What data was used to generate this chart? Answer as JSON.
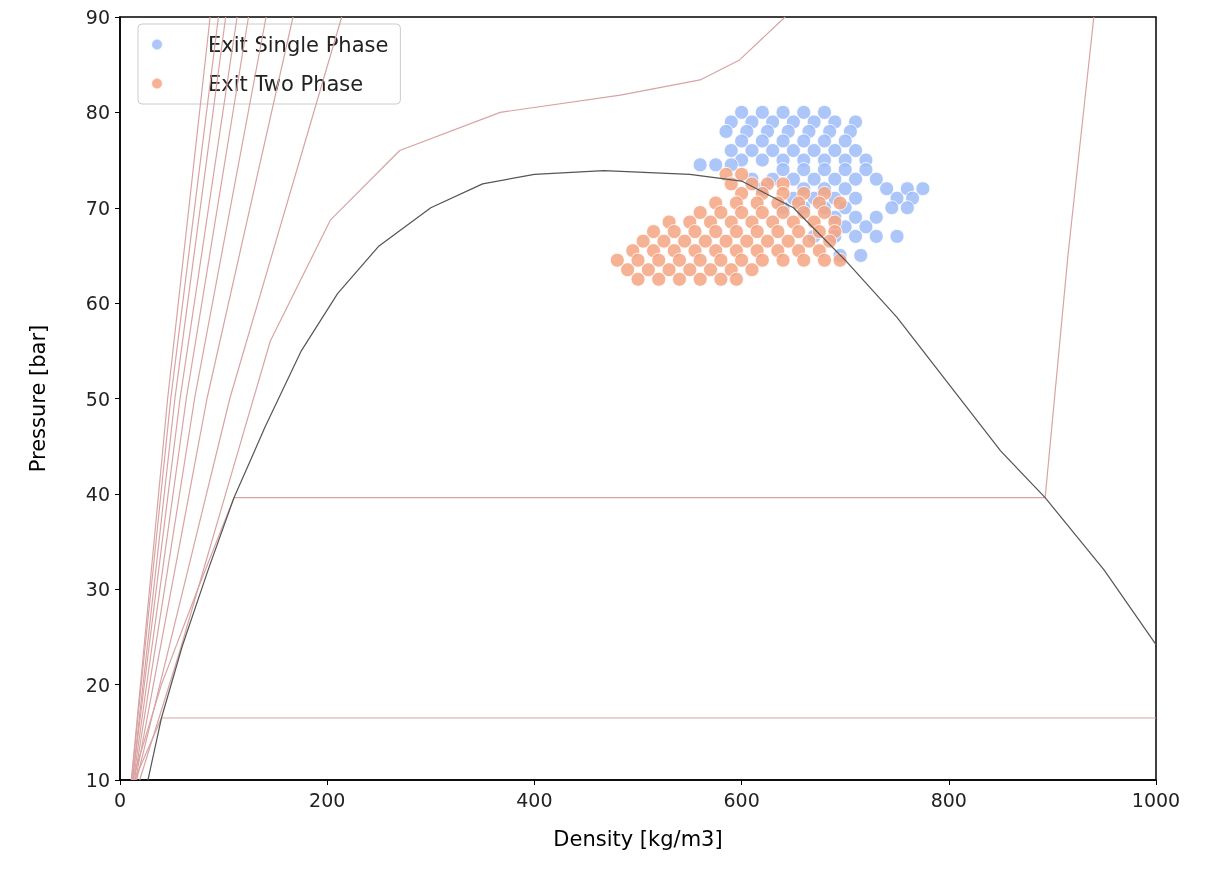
{
  "chart_data": {
    "type": "scatter",
    "xlabel": "Density [kg/m3]",
    "ylabel": "Pressure [bar]",
    "xlim": [
      0,
      1000
    ],
    "xticks": [
      0,
      200,
      400,
      600,
      800,
      1000
    ],
    "ylim": [
      10,
      90
    ],
    "yticks": [
      10,
      20,
      30,
      40,
      50,
      60,
      70,
      80,
      90
    ],
    "grid": false,
    "legend": "top left",
    "series": [
      {
        "type": "line",
        "color": "#d9a3a3",
        "x": [
          14,
          40,
          1000
        ],
        "values": [
          10,
          16.5,
          16.5
        ]
      },
      {
        "type": "line",
        "color": "#d9a3a3",
        "x": [
          12,
          40,
          75,
          110,
          893,
          915,
          940
        ],
        "values": [
          10,
          20,
          30,
          39.6,
          39.6,
          65,
          90
        ]
      },
      {
        "type": "line",
        "color": "#d9a3a3",
        "x": [
          19,
          58,
          106,
          145,
          203,
          270,
          367,
          483,
          560,
          598,
          642
        ],
        "values": [
          10,
          23.6,
          41.5,
          56,
          68.7,
          76,
          80,
          81.8,
          83.4,
          85.5,
          90
        ]
      },
      {
        "type": "line",
        "color": "#d9a3a3",
        "x": [
          11,
          46,
          87
        ],
        "values": [
          10,
          50,
          90
        ]
      },
      {
        "type": "line",
        "color": "#d9a3a3",
        "x": [
          11,
          49,
          95
        ],
        "values": [
          10,
          50,
          90
        ]
      },
      {
        "type": "line",
        "color": "#d9a3a3",
        "x": [
          12,
          53,
          102
        ],
        "values": [
          10,
          50,
          90
        ]
      },
      {
        "type": "line",
        "color": "#d9a3a3",
        "x": [
          12,
          58,
          113
        ],
        "values": [
          10,
          50,
          90
        ]
      },
      {
        "type": "line",
        "color": "#d9a3a3",
        "x": [
          13,
          64,
          124
        ],
        "values": [
          10,
          50,
          90
        ]
      },
      {
        "type": "line",
        "color": "#d9a3a3",
        "x": [
          14,
          72,
          141
        ],
        "values": [
          10,
          50,
          90
        ]
      },
      {
        "type": "line",
        "color": "#d9a3a3",
        "x": [
          15,
          84,
          167
        ],
        "values": [
          10,
          50,
          90
        ]
      },
      {
        "type": "line",
        "color": "#d9a3a3",
        "x": [
          16,
          106,
          214
        ],
        "values": [
          10,
          50,
          90
        ]
      },
      {
        "name": "Exit Single Phase",
        "color": "#9dbcf8",
        "marker": "circle",
        "x": [
          600,
          620,
          640,
          660,
          680,
          590,
          610,
          630,
          650,
          670,
          690,
          710,
          585,
          605,
          625,
          645,
          665,
          685,
          705,
          600,
          620,
          640,
          660,
          680,
          700,
          590,
          610,
          630,
          650,
          670,
          690,
          710,
          600,
          620,
          640,
          660,
          680,
          700,
          720,
          560,
          575,
          590,
          640,
          660,
          680,
          700,
          720,
          610,
          630,
          650,
          670,
          690,
          710,
          730,
          620,
          640,
          660,
          680,
          700,
          740,
          760,
          775,
          650,
          670,
          690,
          710,
          750,
          765,
          640,
          660,
          680,
          700,
          745,
          760,
          690,
          710,
          730,
          700,
          720,
          670,
          690,
          710,
          730,
          750,
          695,
          715
        ],
        "values": [
          80,
          80,
          80,
          80,
          80,
          79,
          79,
          79,
          79,
          79,
          79,
          79,
          78,
          78,
          78,
          78,
          78,
          78,
          78,
          77,
          77,
          77,
          77,
          77,
          77,
          76,
          76,
          76,
          76,
          76,
          76,
          76,
          75,
          75,
          75,
          75,
          75,
          75,
          75,
          74.5,
          74.5,
          74.5,
          74,
          74,
          74,
          74,
          74,
          73,
          73,
          73,
          73,
          73,
          73,
          73,
          72,
          null,
          72,
          72,
          72,
          72,
          72,
          72,
          71,
          71,
          71,
          71,
          71,
          71,
          70,
          70,
          70,
          70,
          70,
          70,
          69,
          69,
          69,
          68,
          68,
          67,
          67,
          67,
          67,
          67,
          65,
          65
        ]
      },
      {
        "name": "Exit Two Phase",
        "color": "#f4a582",
        "marker": "circle",
        "x": [
          585,
          600,
          590,
          610,
          625,
          640,
          600,
          620,
          640,
          660,
          680,
          575,
          595,
          615,
          635,
          655,
          675,
          695,
          560,
          580,
          600,
          620,
          640,
          660,
          680,
          530,
          550,
          570,
          590,
          610,
          630,
          650,
          670,
          690,
          515,
          535,
          555,
          575,
          595,
          615,
          635,
          655,
          675,
          690,
          505,
          525,
          545,
          565,
          585,
          605,
          625,
          645,
          665,
          685,
          495,
          515,
          535,
          555,
          575,
          595,
          615,
          635,
          655,
          675,
          480,
          500,
          520,
          540,
          560,
          580,
          600,
          620,
          640,
          660,
          680,
          695,
          490,
          510,
          530,
          550,
          570,
          590,
          610,
          500,
          520,
          540,
          560,
          580,
          595
        ],
        "values": [
          73.5,
          73.5,
          72.5,
          72.5,
          72.5,
          72.5,
          71.5,
          71.5,
          71.5,
          71.5,
          71.5,
          70.5,
          70.5,
          70.5,
          70.5,
          70.5,
          70.5,
          70.5,
          69.5,
          69.5,
          69.5,
          69.5,
          69.5,
          69.5,
          69.5,
          68.5,
          68.5,
          68.5,
          68.5,
          68.5,
          68.5,
          68.5,
          68.5,
          68.5,
          67.5,
          67.5,
          67.5,
          67.5,
          67.5,
          67.5,
          67.5,
          67.5,
          67.5,
          67.5,
          66.5,
          66.5,
          66.5,
          66.5,
          66.5,
          66.5,
          66.5,
          66.5,
          66.5,
          66.5,
          65.5,
          65.5,
          65.5,
          65.5,
          65.5,
          65.5,
          65.5,
          65.5,
          65.5,
          65.5,
          64.5,
          64.5,
          64.5,
          64.5,
          64.5,
          64.5,
          64.5,
          64.5,
          64.5,
          64.5,
          64.5,
          64.5,
          63.5,
          63.5,
          63.5,
          63.5,
          63.5,
          63.5,
          63.5,
          62.5,
          62.5,
          62.5,
          62.5,
          62.5,
          62.5
        ]
      },
      {
        "type": "line",
        "color": "#555555",
        "x": [
          27,
          40,
          60,
          85,
          110,
          140,
          175,
          210,
          250,
          300,
          350,
          400,
          467,
          550,
          600,
          650,
          700,
          750,
          800,
          850,
          893,
          950,
          1000
        ],
        "values": [
          10,
          16.5,
          24,
          32,
          39.6,
          47,
          55,
          61,
          66,
          70,
          72.5,
          73.5,
          73.9,
          73.5,
          72.8,
          70,
          64.5,
          58.5,
          51.5,
          44.5,
          39.6,
          32,
          24.2
        ]
      }
    ]
  }
}
